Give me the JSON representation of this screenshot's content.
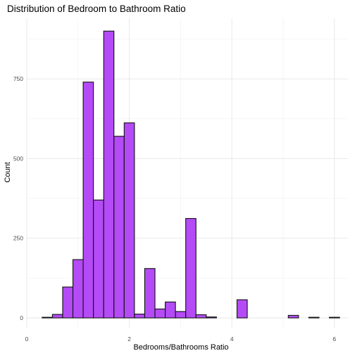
{
  "chart_data": {
    "type": "bar",
    "title": "Distribution of Bedroom to Bathroom Ratio",
    "xlabel": "Bedrooms/Bathrooms Ratio",
    "ylabel": "Count",
    "bin_width": 0.2,
    "bins": [
      {
        "x0": 0.3,
        "x1": 0.5,
        "count": 2
      },
      {
        "x0": 0.5,
        "x1": 0.7,
        "count": 11
      },
      {
        "x0": 0.7,
        "x1": 0.9,
        "count": 97
      },
      {
        "x0": 0.9,
        "x1": 1.1,
        "count": 183
      },
      {
        "x0": 1.1,
        "x1": 1.3,
        "count": 740
      },
      {
        "x0": 1.3,
        "x1": 1.5,
        "count": 370
      },
      {
        "x0": 1.5,
        "x1": 1.7,
        "count": 900
      },
      {
        "x0": 1.7,
        "x1": 1.9,
        "count": 570
      },
      {
        "x0": 1.9,
        "x1": 2.1,
        "count": 612
      },
      {
        "x0": 2.1,
        "x1": 2.3,
        "count": 12
      },
      {
        "x0": 2.3,
        "x1": 2.5,
        "count": 155
      },
      {
        "x0": 2.5,
        "x1": 2.7,
        "count": 28
      },
      {
        "x0": 2.7,
        "x1": 2.9,
        "count": 50
      },
      {
        "x0": 2.9,
        "x1": 3.1,
        "count": 20
      },
      {
        "x0": 3.1,
        "x1": 3.3,
        "count": 312
      },
      {
        "x0": 3.3,
        "x1": 3.5,
        "count": 10
      },
      {
        "x0": 3.5,
        "x1": 3.7,
        "count": 3
      },
      {
        "x0": 3.7,
        "x1": 3.9,
        "count": 0
      },
      {
        "x0": 3.9,
        "x1": 4.1,
        "count": 0
      },
      {
        "x0": 4.1,
        "x1": 4.3,
        "count": 57
      },
      {
        "x0": 4.3,
        "x1": 4.5,
        "count": 0
      },
      {
        "x0": 4.5,
        "x1": 4.7,
        "count": 0
      },
      {
        "x0": 4.7,
        "x1": 4.9,
        "count": 0
      },
      {
        "x0": 4.9,
        "x1": 5.1,
        "count": 0
      },
      {
        "x0": 5.1,
        "x1": 5.3,
        "count": 8
      },
      {
        "x0": 5.3,
        "x1": 5.5,
        "count": 0
      },
      {
        "x0": 5.5,
        "x1": 5.7,
        "count": 2
      },
      {
        "x0": 5.7,
        "x1": 5.9,
        "count": 0
      },
      {
        "x0": 5.9,
        "x1": 6.1,
        "count": 2
      }
    ],
    "x_ticks": [
      0,
      2,
      4,
      6
    ],
    "y_ticks": [
      0,
      250,
      500,
      750
    ],
    "xlim": [
      0,
      6.1
    ],
    "ylim": [
      0,
      900
    ],
    "bar_fill": "#b041f5",
    "bar_stroke": "#111111",
    "grid": true,
    "legend": "none"
  }
}
